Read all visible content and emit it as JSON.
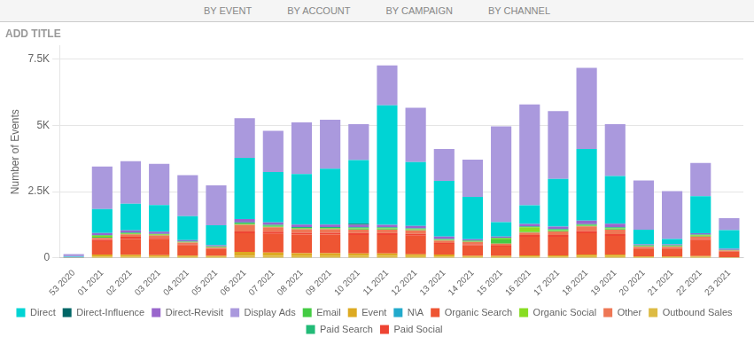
{
  "chart_data": {
    "type": "bar",
    "title": "ADD TITLE",
    "annotations": [
      "BY EVENT",
      "BY ACCOUNT",
      "BY CAMPAIGN",
      "BY CHANNEL"
    ],
    "categories": [
      "53 2020",
      "01 2021",
      "02 2021",
      "03 2021",
      "04 2021",
      "05 2021",
      "06 2021",
      "07 2021",
      "08 2021",
      "09 2021",
      "10 2021",
      "11 2021",
      "12 2021",
      "13 2021",
      "14 2021",
      "15 2021",
      "16 2021",
      "17 2021",
      "18 2021",
      "19 2021",
      "20 2021",
      "21 2021",
      "22 2021",
      "23 2021"
    ],
    "series": [
      {
        "name": "Outbound Sales",
        "color": "#ddbb44",
        "values": [
          0,
          50,
          50,
          50,
          40,
          40,
          80,
          80,
          70,
          70,
          80,
          80,
          70,
          50,
          40,
          40,
          60,
          60,
          70,
          70,
          30,
          30,
          50,
          20
        ]
      },
      {
        "name": "Event",
        "color": "#ddaa22",
        "values": [
          0,
          80,
          70,
          60,
          50,
          40,
          150,
          130,
          110,
          110,
          90,
          90,
          70,
          80,
          40,
          40,
          40,
          40,
          60,
          60,
          25,
          25,
          25,
          10
        ]
      },
      {
        "name": "Organic Search",
        "color": "#ee5533",
        "values": [
          20,
          500,
          600,
          600,
          400,
          250,
          700,
          700,
          700,
          700,
          700,
          700,
          700,
          400,
          400,
          350,
          700,
          700,
          800,
          700,
          300,
          300,
          600,
          200
        ]
      },
      {
        "name": "Paid Social",
        "color": "#ee4433",
        "values": [
          0,
          50,
          80,
          50,
          30,
          20,
          70,
          80,
          70,
          70,
          70,
          70,
          70,
          40,
          40,
          40,
          70,
          70,
          90,
          70,
          25,
          25,
          45,
          15
        ]
      },
      {
        "name": "Other",
        "color": "#ee7755",
        "values": [
          0,
          80,
          90,
          90,
          60,
          40,
          250,
          170,
          130,
          130,
          130,
          130,
          130,
          90,
          90,
          70,
          90,
          130,
          170,
          170,
          45,
          45,
          90,
          40
        ]
      },
      {
        "name": "Email",
        "color": "#44cc44",
        "values": [
          0,
          40,
          15,
          15,
          15,
          25,
          25,
          25,
          25,
          25,
          25,
          25,
          15,
          15,
          15,
          160,
          25,
          25,
          25,
          25,
          25,
          25,
          25,
          8
        ]
      },
      {
        "name": "Organic Social",
        "color": "#88dd22",
        "values": [
          0,
          40,
          25,
          25,
          15,
          15,
          25,
          25,
          25,
          25,
          25,
          25,
          25,
          15,
          15,
          40,
          170,
          25,
          25,
          25,
          15,
          15,
          25,
          8
        ]
      },
      {
        "name": "Paid Search",
        "color": "#22bb77",
        "values": [
          0,
          25,
          25,
          15,
          15,
          15,
          40,
          40,
          40,
          40,
          40,
          40,
          40,
          25,
          25,
          25,
          40,
          40,
          40,
          40,
          15,
          15,
          25,
          8
        ]
      },
      {
        "name": "Direct-Revisit",
        "color": "#9966cc",
        "values": [
          0,
          80,
          90,
          90,
          50,
          40,
          130,
          90,
          90,
          90,
          90,
          90,
          90,
          90,
          40,
          40,
          90,
          90,
          130,
          130,
          40,
          40,
          45,
          40
        ]
      },
      {
        "name": "Direct-Influence",
        "color": "#006666",
        "values": [
          0,
          0,
          0,
          0,
          0,
          0,
          0,
          0,
          0,
          0,
          40,
          0,
          0,
          0,
          0,
          0,
          0,
          0,
          0,
          0,
          0,
          0,
          0,
          0
        ]
      },
      {
        "name": "Direct",
        "color": "#00d4d4",
        "values": [
          30,
          900,
          1000,
          1000,
          900,
          750,
          2300,
          1900,
          1900,
          2100,
          2400,
          4500,
          2400,
          2100,
          1600,
          550,
          700,
          1800,
          2700,
          1800,
          550,
          200,
          1400,
          700
        ]
      },
      {
        "name": "N\\A",
        "color": "#22aacc",
        "values": [
          0,
          0,
          0,
          0,
          0,
          0,
          0,
          0,
          0,
          0,
          0,
          0,
          0,
          0,
          0,
          0,
          0,
          0,
          0,
          0,
          0,
          0,
          0,
          0
        ]
      },
      {
        "name": "Display Ads",
        "color": "#aa99dd",
        "values": [
          100,
          1600,
          1600,
          1550,
          1550,
          1500,
          1500,
          1550,
          1950,
          1850,
          1350,
          1500,
          2050,
          1200,
          1400,
          3600,
          3800,
          2550,
          3050,
          1950,
          1850,
          1800,
          1250,
          450
        ]
      }
    ],
    "ylabel": "Number of Events",
    "ylim": [
      0,
      8000
    ],
    "yticks": [
      0,
      {
        "value": 2500,
        "label": "2.5K"
      },
      {
        "value": 5000,
        "label": "5K"
      },
      {
        "value": 7500,
        "label": "7.5K"
      }
    ],
    "stacked": true,
    "grid": true,
    "legend": "bottom"
  }
}
